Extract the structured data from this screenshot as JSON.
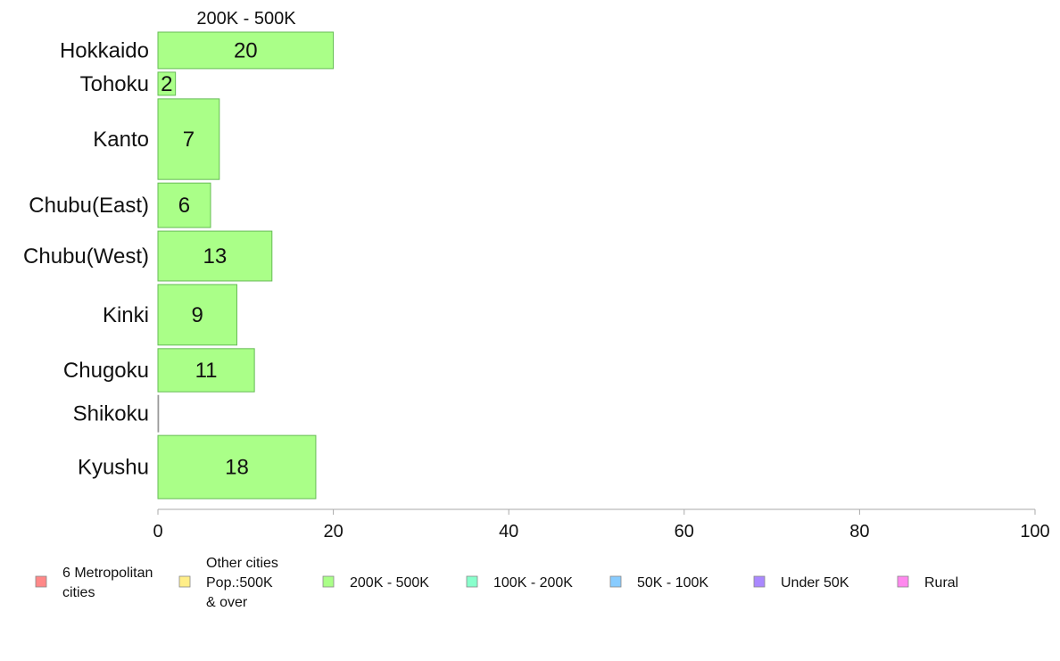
{
  "chart_data": {
    "type": "bar",
    "orientation": "horizontal",
    "title": "200K - 500K",
    "xlabel": "",
    "ylabel": "",
    "xlim": [
      0,
      100
    ],
    "x_ticks": [
      0,
      20,
      40,
      60,
      80,
      100
    ],
    "grid": false,
    "categories": [
      "Hokkaido",
      "Tohoku",
      "Kanto",
      "Chubu(East)",
      "Chubu(West)",
      "Kinki",
      "Chugoku",
      "Shikoku",
      "Kyushu"
    ],
    "category_weights": [
      3,
      2,
      6.3,
      3.6,
      4,
      4.8,
      3.5,
      3,
      5
    ],
    "values": [
      20,
      2,
      7,
      6,
      13,
      9,
      11,
      0,
      18
    ],
    "data_labels": [
      "20",
      "2",
      "7",
      "6",
      "13",
      "9",
      "11",
      "",
      "18"
    ],
    "bar_color": "#aaff88",
    "bar_stroke": "#66bb55",
    "legend": {
      "placement": "bottom",
      "entries": [
        {
          "lines": [
            "6 Metropolitan",
            " cities"
          ],
          "color": "#ff8888"
        },
        {
          "lines": [
            "Other cities",
            "Pop.:500K",
            " & over"
          ],
          "color": "#ffee88"
        },
        {
          "lines": [
            "200K - 500K"
          ],
          "color": "#aaff88"
        },
        {
          "lines": [
            "100K - 200K"
          ],
          "color": "#88ffcc"
        },
        {
          "lines": [
            "50K - 100K"
          ],
          "color": "#88ccff"
        },
        {
          "lines": [
            "Under 50K"
          ],
          "color": "#aa88ff"
        },
        {
          "lines": [
            "Rural"
          ],
          "color": "#ff88ee"
        }
      ]
    }
  }
}
